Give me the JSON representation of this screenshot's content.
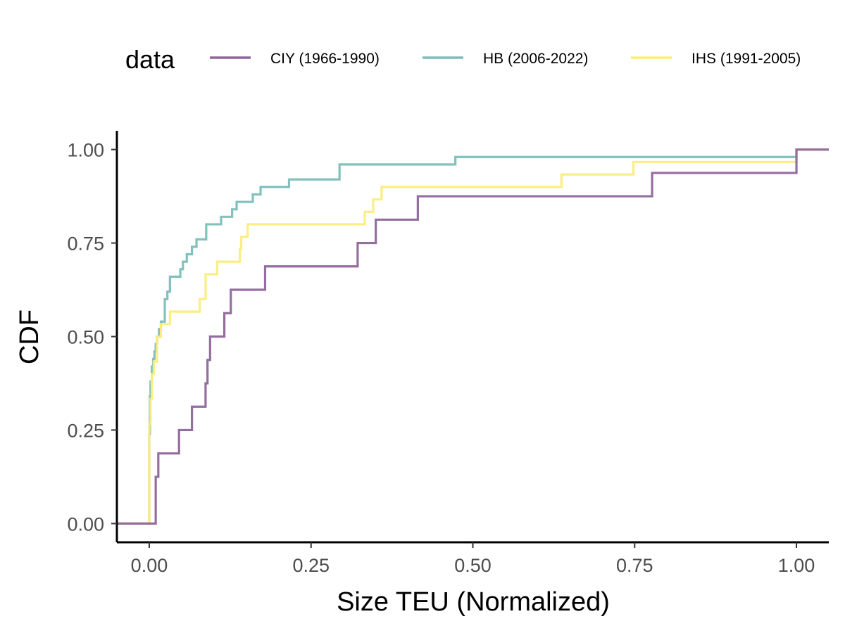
{
  "chart_data": {
    "type": "line",
    "xlabel": "Size TEU (Normalized)",
    "ylabel": "CDF",
    "xlim": [
      -0.05,
      1.05
    ],
    "ylim": [
      -0.05,
      1.05
    ],
    "x_ticks": [
      "0.00",
      "0.25",
      "0.50",
      "0.75",
      "1.00"
    ],
    "x_tick_values": [
      0,
      0.25,
      0.5,
      0.75,
      1.0
    ],
    "y_ticks": [
      "0.00",
      "0.25",
      "0.50",
      "0.75",
      "1.00"
    ],
    "y_tick_values": [
      0,
      0.25,
      0.5,
      0.75,
      1.0
    ],
    "grid": false,
    "legend": {
      "title": "data",
      "placement": "top"
    },
    "series": [
      {
        "name": "CIY (1966-1990)",
        "color": "#8e6699",
        "steps": [
          [
            -0.05,
            0
          ],
          [
            0.0,
            0
          ],
          [
            0.01,
            0.125
          ],
          [
            0.014,
            0.1875
          ],
          [
            0.046,
            0.25
          ],
          [
            0.066,
            0.3125
          ],
          [
            0.087,
            0.375
          ],
          [
            0.09,
            0.4375
          ],
          [
            0.094,
            0.5
          ],
          [
            0.116,
            0.5625
          ],
          [
            0.126,
            0.625
          ],
          [
            0.179,
            0.6875
          ],
          [
            0.322,
            0.75
          ],
          [
            0.35,
            0.8125
          ],
          [
            0.415,
            0.875
          ],
          [
            0.777,
            0.9375
          ],
          [
            1.0,
            1.0
          ],
          [
            1.05,
            1.0
          ]
        ]
      },
      {
        "name": "HB (2006-2022)",
        "color": "#7bbeb9",
        "steps": [
          [
            -0.05,
            0
          ],
          [
            0.0,
            0.24
          ],
          [
            0.001,
            0.34
          ],
          [
            0.002,
            0.38
          ],
          [
            0.004,
            0.42
          ],
          [
            0.006,
            0.44
          ],
          [
            0.008,
            0.46
          ],
          [
            0.01,
            0.48
          ],
          [
            0.012,
            0.5
          ],
          [
            0.015,
            0.52
          ],
          [
            0.018,
            0.54
          ],
          [
            0.024,
            0.6
          ],
          [
            0.028,
            0.62
          ],
          [
            0.032,
            0.66
          ],
          [
            0.048,
            0.68
          ],
          [
            0.052,
            0.7
          ],
          [
            0.058,
            0.72
          ],
          [
            0.066,
            0.74
          ],
          [
            0.073,
            0.76
          ],
          [
            0.088,
            0.8
          ],
          [
            0.111,
            0.82
          ],
          [
            0.128,
            0.84
          ],
          [
            0.135,
            0.86
          ],
          [
            0.16,
            0.88
          ],
          [
            0.172,
            0.9
          ],
          [
            0.216,
            0.92
          ],
          [
            0.294,
            0.96
          ],
          [
            0.473,
            0.98
          ],
          [
            1.0,
            1.0
          ],
          [
            1.05,
            1.0
          ]
        ]
      },
      {
        "name": "IHS (1991-2005)",
        "color": "#fbed7c",
        "steps": [
          [
            -0.05,
            0
          ],
          [
            0.0,
            0.2667
          ],
          [
            0.002,
            0.3333
          ],
          [
            0.004,
            0.4
          ],
          [
            0.007,
            0.4333
          ],
          [
            0.012,
            0.5
          ],
          [
            0.018,
            0.5333
          ],
          [
            0.032,
            0.5667
          ],
          [
            0.078,
            0.6
          ],
          [
            0.087,
            0.6667
          ],
          [
            0.105,
            0.7
          ],
          [
            0.14,
            0.7333
          ],
          [
            0.142,
            0.7667
          ],
          [
            0.152,
            0.8
          ],
          [
            0.333,
            0.8333
          ],
          [
            0.346,
            0.8667
          ],
          [
            0.359,
            0.9
          ],
          [
            0.637,
            0.9333
          ],
          [
            0.748,
            0.9667
          ],
          [
            1.0,
            1.0
          ],
          [
            1.05,
            1.0
          ]
        ]
      }
    ]
  }
}
